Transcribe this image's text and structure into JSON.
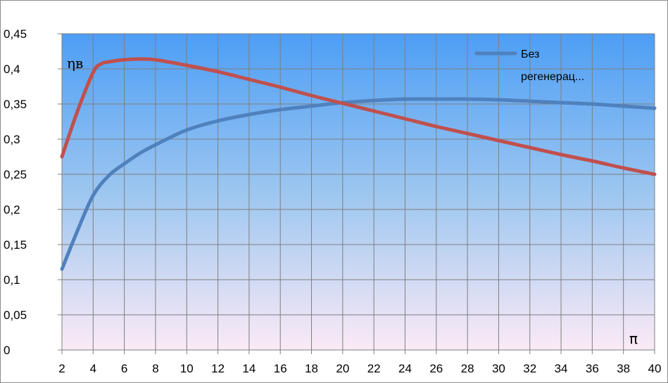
{
  "chart_data": {
    "type": "line",
    "ylabel": "ηв",
    "xlabel": "π",
    "xlim": [
      2,
      40
    ],
    "ylim": [
      0,
      0.45
    ],
    "x_ticks": [
      "2",
      "4",
      "6",
      "8",
      "10",
      "12",
      "14",
      "16",
      "18",
      "20",
      "22",
      "24",
      "26",
      "28",
      "30",
      "32",
      "34",
      "36",
      "38",
      "40"
    ],
    "y_ticks": [
      "0",
      "0,05",
      "0,1",
      "0,15",
      "0,2",
      "0,25",
      "0,3",
      "0,35",
      "0,4",
      "0,45"
    ],
    "grid": true,
    "legend_position": "top-right",
    "series": [
      {
        "name": "Без регенерац...",
        "color": "#4f81bd",
        "x": [
          2,
          3,
          4,
          5,
          6,
          7,
          8,
          10,
          12,
          14,
          16,
          18,
          20,
          22,
          24,
          26,
          28,
          30,
          32,
          34,
          36,
          38,
          40
        ],
        "y": [
          0.115,
          0.17,
          0.22,
          0.248,
          0.265,
          0.28,
          0.292,
          0.313,
          0.326,
          0.335,
          0.342,
          0.347,
          0.352,
          0.355,
          0.357,
          0.357,
          0.357,
          0.356,
          0.354,
          0.352,
          0.35,
          0.347,
          0.344
        ]
      },
      {
        "name": "",
        "color": "#c0504d",
        "x": [
          2,
          3,
          4,
          4.5,
          5,
          6,
          7,
          8,
          10,
          12,
          14,
          16,
          18,
          20,
          22,
          24,
          26,
          28,
          30,
          32,
          34,
          36,
          38,
          40
        ],
        "y": [
          0.275,
          0.34,
          0.395,
          0.407,
          0.41,
          0.413,
          0.414,
          0.413,
          0.405,
          0.396,
          0.385,
          0.374,
          0.362,
          0.351,
          0.34,
          0.329,
          0.318,
          0.308,
          0.298,
          0.288,
          0.278,
          0.269,
          0.259,
          0.25
        ]
      }
    ]
  }
}
